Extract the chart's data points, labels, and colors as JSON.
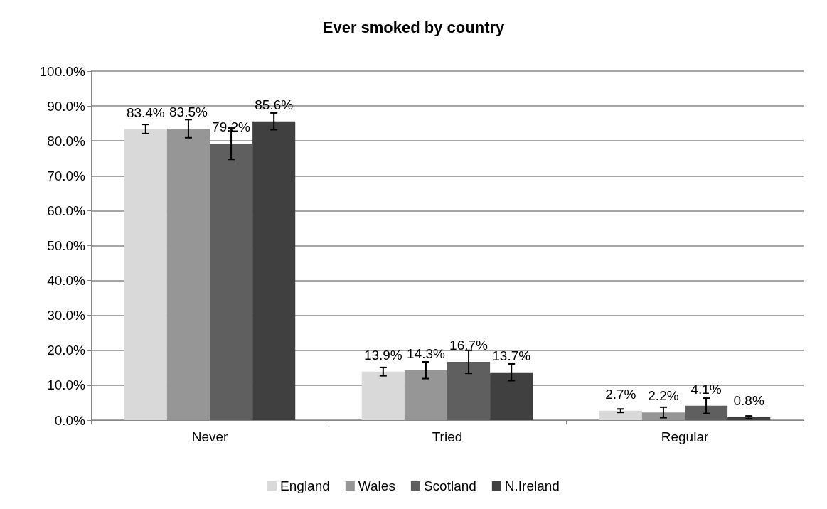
{
  "chart_data": {
    "type": "bar",
    "title": "Ever smoked by country",
    "categories": [
      "Never",
      "Tried",
      "Regular"
    ],
    "series": [
      {
        "name": "England",
        "color": "#d9d9d9",
        "values": [
          83.4,
          13.9,
          2.7
        ],
        "value_labels": [
          "83.4%",
          "13.9%",
          "2.7%"
        ],
        "errors": [
          1.3,
          1.2,
          0.5
        ]
      },
      {
        "name": "Wales",
        "color": "#969696",
        "values": [
          83.5,
          14.3,
          2.2
        ],
        "value_labels": [
          "83.5%",
          "14.3%",
          "2.2%"
        ],
        "errors": [
          2.6,
          2.4,
          1.5
        ]
      },
      {
        "name": "Scotland",
        "color": "#5f5f5f",
        "values": [
          79.2,
          16.7,
          4.1
        ],
        "value_labels": [
          "79.2%",
          "16.7%",
          "4.1%"
        ],
        "errors": [
          4.5,
          3.3,
          2.2
        ]
      },
      {
        "name": "N.Ireland",
        "color": "#404040",
        "values": [
          85.6,
          13.7,
          0.8
        ],
        "value_labels": [
          "85.6%",
          "13.7%",
          "0.8%"
        ],
        "errors": [
          2.4,
          2.4,
          0.4
        ]
      }
    ],
    "ylim": [
      0,
      100
    ],
    "yticks": [
      {
        "value": 0,
        "label": "0.0%"
      },
      {
        "value": 10,
        "label": "10.0%"
      },
      {
        "value": 20,
        "label": "20.0%"
      },
      {
        "value": 30,
        "label": "30.0%"
      },
      {
        "value": 40,
        "label": "40.0%"
      },
      {
        "value": 50,
        "label": "50.0%"
      },
      {
        "value": 60,
        "label": "60.0%"
      },
      {
        "value": 70,
        "label": "70.0%"
      },
      {
        "value": 80,
        "label": "80.0%"
      },
      {
        "value": 90,
        "label": "90.0%"
      },
      {
        "value": 100,
        "label": "100.0%"
      }
    ],
    "grid": "y",
    "legend": "bottom"
  }
}
